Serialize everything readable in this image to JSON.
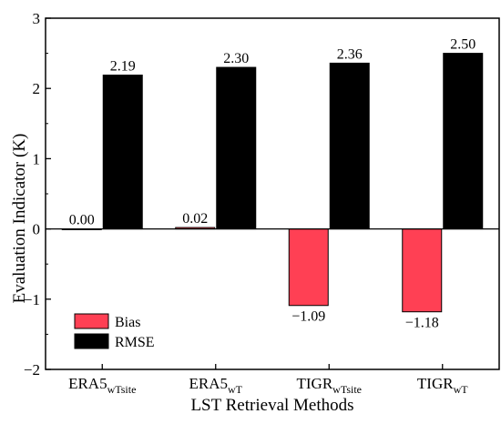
{
  "chart_data": {
    "type": "bar",
    "categories": [
      {
        "base": "ERA5",
        "sub": "wTsite"
      },
      {
        "base": "ERA5",
        "sub": "wT"
      },
      {
        "base": "TIGR",
        "sub": "wTsite"
      },
      {
        "base": "TIGR",
        "sub": "wT"
      }
    ],
    "series": [
      {
        "name": "Bias",
        "color": "#ff4054",
        "values": [
          0.0,
          0.02,
          -1.09,
          -1.18
        ],
        "labels": [
          "0.00",
          "0.02",
          "−1.09",
          "−1.18"
        ]
      },
      {
        "name": "RMSE",
        "color": "#000000",
        "values": [
          2.19,
          2.3,
          2.36,
          2.5
        ],
        "labels": [
          "2.19",
          "2.30",
          "2.36",
          "2.50"
        ]
      }
    ],
    "xlabel": "LST Retrieval Methods",
    "ylabel": "Evaluation Indicator (K)",
    "ylim": [
      -2,
      3
    ],
    "yticks": [
      -2,
      -1,
      0,
      1,
      2,
      3
    ],
    "ytick_labels": [
      "−2",
      "−1",
      "0",
      "1",
      "2",
      "3"
    ],
    "zero_line": true,
    "grid": false,
    "legend_position": "bottom-left"
  }
}
